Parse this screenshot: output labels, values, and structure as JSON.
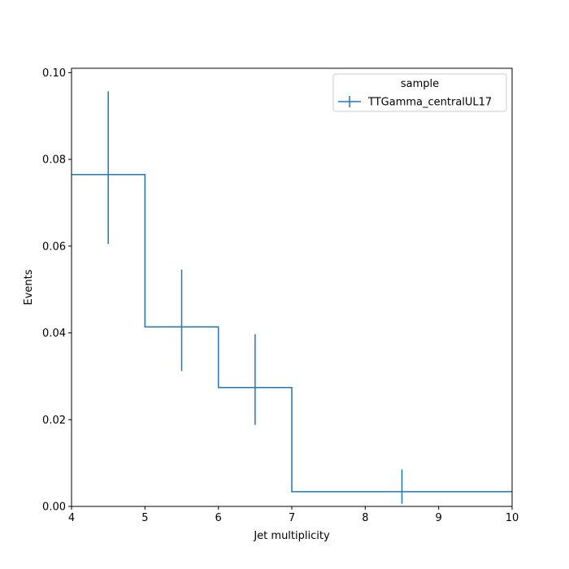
{
  "chart_data": {
    "type": "step-histogram",
    "xlabel": "Jet multiplicity",
    "ylabel": "Events",
    "xlim": [
      4,
      10
    ],
    "ylim": [
      0,
      0.101
    ],
    "xticks": [
      "4",
      "5",
      "6",
      "7",
      "8",
      "9",
      "10"
    ],
    "yticks": [
      "0.00",
      "0.02",
      "0.04",
      "0.06",
      "0.08",
      "0.10"
    ],
    "grid": false,
    "legend": {
      "title": "sample",
      "placement": "top-right",
      "entries": [
        "TTGamma_centralUL17"
      ]
    },
    "series": [
      {
        "name": "TTGamma_centralUL17",
        "color": "#1f77b4",
        "bins": [
          {
            "x0": 4,
            "x1": 5,
            "center": 4.5,
            "value": 0.0765,
            "err_low": 0.0605,
            "err_high": 0.0957
          },
          {
            "x0": 5,
            "x1": 6,
            "center": 5.5,
            "value": 0.0414,
            "err_low": 0.0312,
            "err_high": 0.0546
          },
          {
            "x0": 6,
            "x1": 7,
            "center": 6.5,
            "value": 0.0274,
            "err_low": 0.0188,
            "err_high": 0.0397
          },
          {
            "x0": 7,
            "x1": 10,
            "center": 8.5,
            "value": 0.0034,
            "err_low": 0.0006,
            "err_high": 0.0085
          }
        ]
      }
    ]
  }
}
